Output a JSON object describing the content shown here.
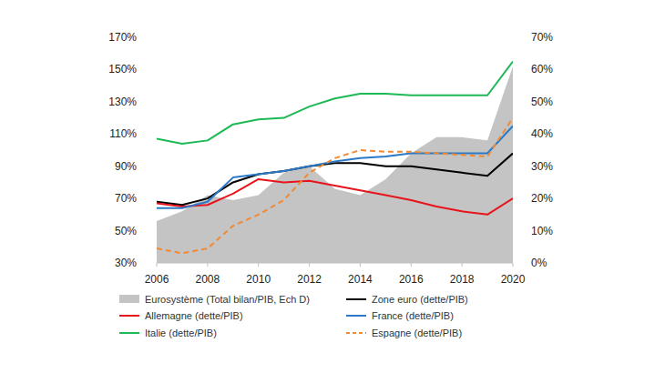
{
  "chart_data": {
    "type": "line",
    "x": [
      2006,
      2007,
      2008,
      2009,
      2010,
      2011,
      2012,
      2013,
      2014,
      2015,
      2016,
      2017,
      2018,
      2019,
      2020
    ],
    "xlim": [
      2006,
      2020
    ],
    "xticks": [
      2006,
      2008,
      2010,
      2012,
      2014,
      2016,
      2018,
      2020
    ],
    "ylim": [
      30,
      170
    ],
    "yticks": [
      {
        "value": 30,
        "label": "30%"
      },
      {
        "value": 50,
        "label": "50%"
      },
      {
        "value": 70,
        "label": "70%"
      },
      {
        "value": 90,
        "label": "90%"
      },
      {
        "value": 110,
        "label": "110%"
      },
      {
        "value": 130,
        "label": "130%"
      },
      {
        "value": 150,
        "label": "150%"
      },
      {
        "value": 170,
        "label": "170%"
      }
    ],
    "y2lim": [
      0,
      70
    ],
    "y2ticks": [
      {
        "value": 0,
        "label": "0%"
      },
      {
        "value": 10,
        "label": "10%"
      },
      {
        "value": 20,
        "label": "20%"
      },
      {
        "value": 30,
        "label": "30%"
      },
      {
        "value": 40,
        "label": "40%"
      },
      {
        "value": 50,
        "label": "50%"
      },
      {
        "value": 60,
        "label": "60%"
      },
      {
        "value": 70,
        "label": "70%"
      }
    ],
    "grid": false,
    "legend": "bottom",
    "series": [
      {
        "name": "Eurosystème (Total bilan/PIB, Ech D)",
        "type": "area",
        "axis": "y2",
        "color": "#c4c4c4",
        "values": [
          13,
          16,
          21,
          19.5,
          21,
          28,
          30,
          23,
          21,
          26,
          34,
          39,
          39,
          38,
          61
        ]
      },
      {
        "name": "Zone euro (dette/PIB)",
        "color": "#000000",
        "line_style": "solid",
        "values": [
          68,
          66,
          70,
          80,
          85,
          87,
          90,
          92,
          92,
          90,
          90,
          88,
          86,
          84,
          98
        ]
      },
      {
        "name": "Allemagne (dette/PIB)",
        "color": "#e8141b",
        "line_style": "solid",
        "values": [
          67,
          65,
          66,
          73,
          82,
          80,
          81,
          78,
          75,
          72,
          69,
          65,
          62,
          60,
          70
        ]
      },
      {
        "name": "France (dette/PIB)",
        "color": "#2a7ac7",
        "line_style": "solid",
        "values": [
          64,
          64,
          68,
          83,
          85,
          87,
          90,
          93,
          95,
          96,
          98,
          98,
          98,
          98,
          115
        ]
      },
      {
        "name": "Italie (dette/PIB)",
        "color": "#1db954",
        "line_style": "solid",
        "values": [
          107,
          104,
          106,
          116,
          119,
          120,
          127,
          132,
          135,
          135,
          134,
          134,
          134,
          134,
          155
        ]
      },
      {
        "name": "Espagne (dette/PIB)",
        "color": "#f08a35",
        "line_style": "dashed",
        "values": [
          39,
          36,
          39,
          53,
          60,
          69,
          86,
          95,
          100,
          99,
          99,
          98,
          97,
          96,
          120
        ]
      }
    ]
  }
}
